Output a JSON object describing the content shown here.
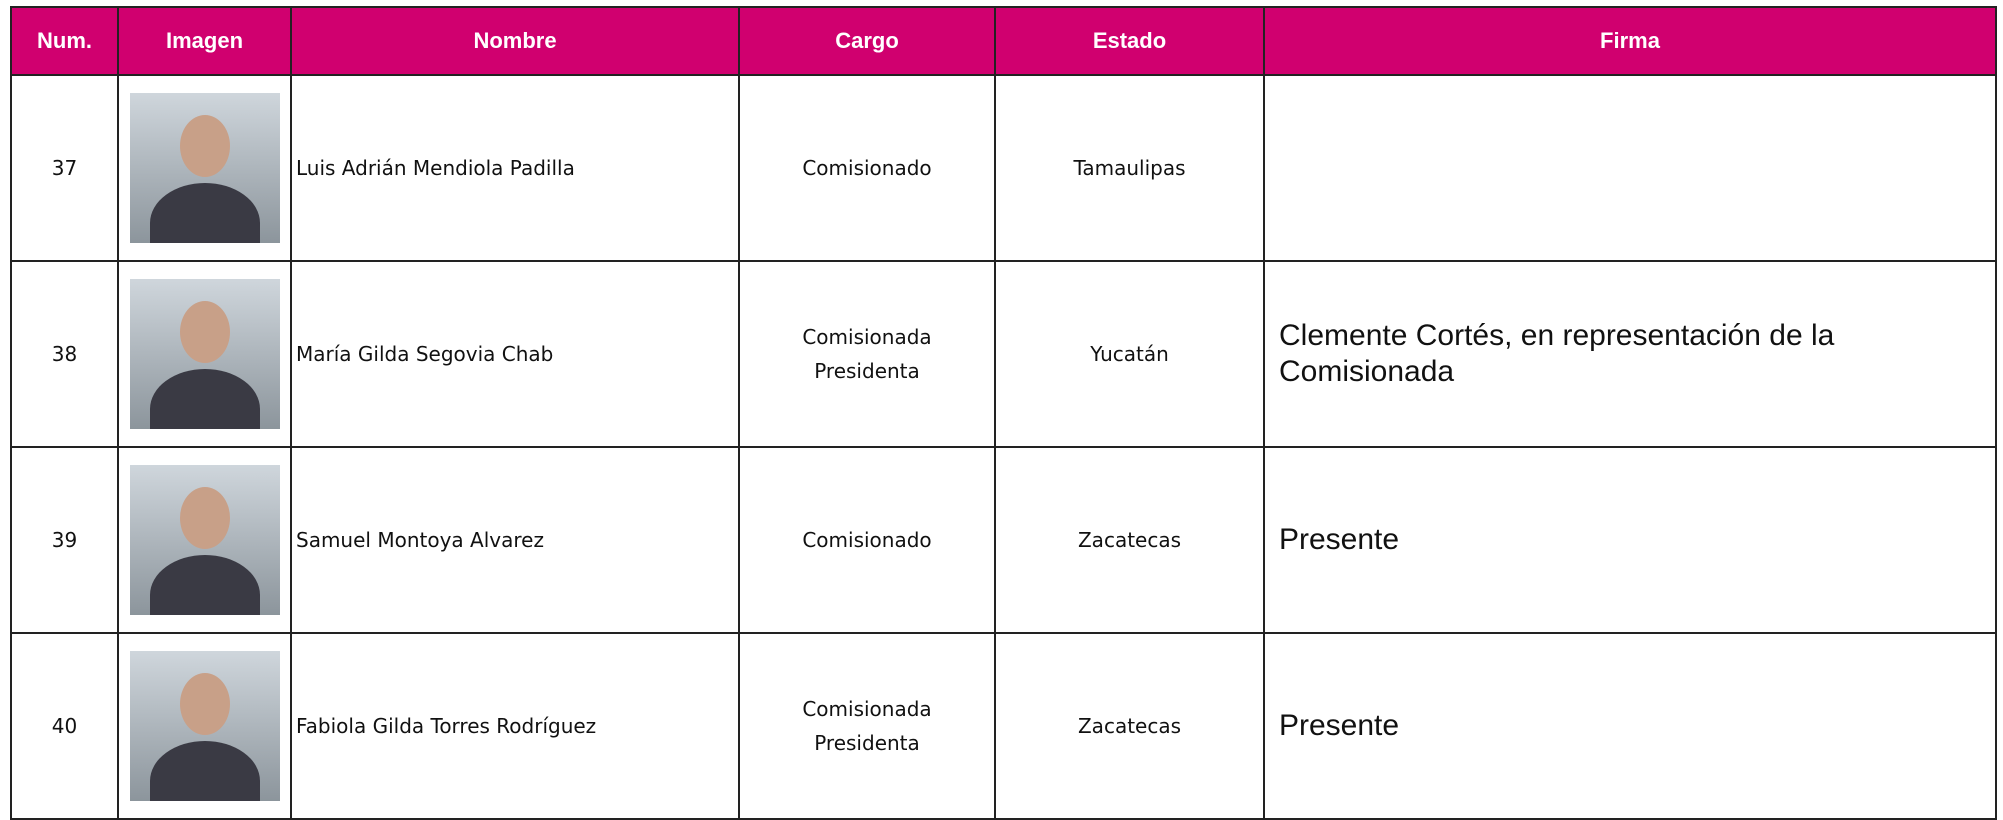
{
  "table": {
    "headers": [
      "Num.",
      "Imagen",
      "Nombre",
      "Cargo",
      "Estado",
      "Firma"
    ],
    "rows": [
      {
        "num": "37",
        "nombre": "Luis Adrián Mendiola Padilla",
        "cargo": "Comisionado",
        "estado": "Tamaulipas"
      },
      {
        "num": "38",
        "nombre": "María Gilda Segovia Chab",
        "cargo": "Comisionada Presidenta",
        "estado": "Yucatán",
        "firma": "Clemente Cortés, en representación de la Comisionada"
      },
      {
        "num": "39",
        "nombre": "Samuel Montoya Alvarez",
        "cargo": "Comisionado",
        "estado": "Zacatecas",
        "firma": "Presente"
      },
      {
        "num": "40",
        "nombre": "Fabiola Gilda Torres Rodríguez",
        "cargo": "Comisionada Presidenta",
        "estado": "Zacatecas",
        "firma": "Presente"
      }
    ]
  }
}
